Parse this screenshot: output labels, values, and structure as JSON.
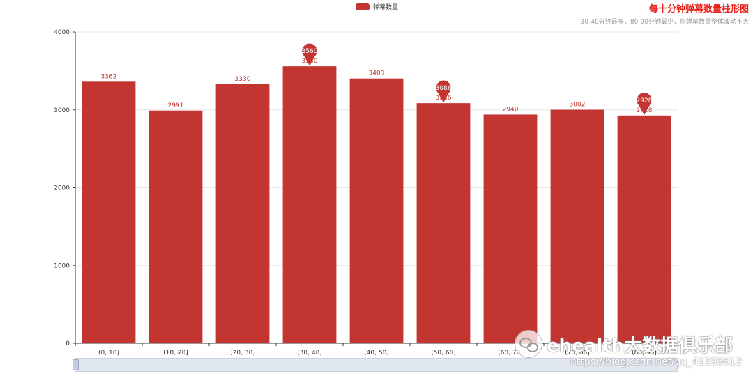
{
  "chart_data": {
    "type": "bar",
    "title": "每十分钟弹幕数量柱形图",
    "subtitle": "30-40分钟最多，80-90分钟最少，但弹幕数量整体波动不大",
    "legend": {
      "label": "弹幕数量",
      "position": "top-center"
    },
    "categories": [
      "(0, 10]",
      "(10, 20]",
      "(20, 30]",
      "(30, 40]",
      "(40, 50]",
      "(50, 60]",
      "(60, 70]",
      "(70, 80]",
      "(80, 90]"
    ],
    "series": [
      {
        "name": "弹幕数量",
        "values": [
          3362,
          2991,
          3330,
          3560,
          3403,
          3086,
          2940,
          3002,
          2928
        ]
      }
    ],
    "ylim": [
      0,
      4000
    ],
    "yticks": [
      0,
      1000,
      2000,
      3000,
      4000
    ],
    "grid": true,
    "mark_points": [
      {
        "category": "(30, 40]",
        "value": 3560
      },
      {
        "category": "(50, 60]",
        "value": 3086
      },
      {
        "category": "(80, 90]",
        "value": 2928
      }
    ],
    "colors": {
      "bar": "#c23531",
      "title": "#e8201a",
      "subtitle": "#999999",
      "label": "#c23531"
    }
  },
  "watermark": {
    "text": "ehealth大数据俱乐部",
    "url": "https://blog.csdn.net/qq_41196612"
  }
}
